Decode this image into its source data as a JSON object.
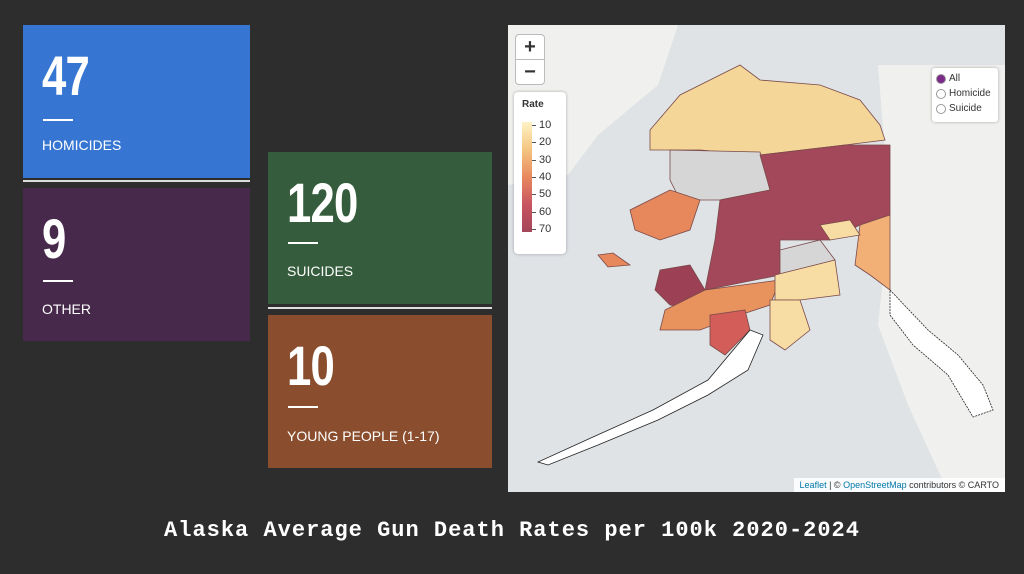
{
  "cards": [
    {
      "value": 47,
      "label": "HOMICIDES"
    },
    {
      "value": 9,
      "label": "OTHER"
    },
    {
      "value": 120,
      "label": "SUICIDES"
    },
    {
      "value": 10,
      "label": "YOUNG PEOPLE (1-17)"
    }
  ],
  "map": {
    "zoom_in": "+",
    "zoom_out": "−",
    "legend": {
      "title": "Rate",
      "ticks": [
        10,
        20,
        30,
        40,
        50,
        60,
        70
      ]
    },
    "layers": [
      "All",
      "Homicide",
      "Suicide"
    ],
    "attribution": {
      "leaflet": "Leaflet",
      "separator": "| ©",
      "osm": "OpenStreetMap",
      "carto": "contributors © CARTO"
    }
  },
  "caption": "Alaska Average Gun Death Rates per 100k 2020-2024"
}
